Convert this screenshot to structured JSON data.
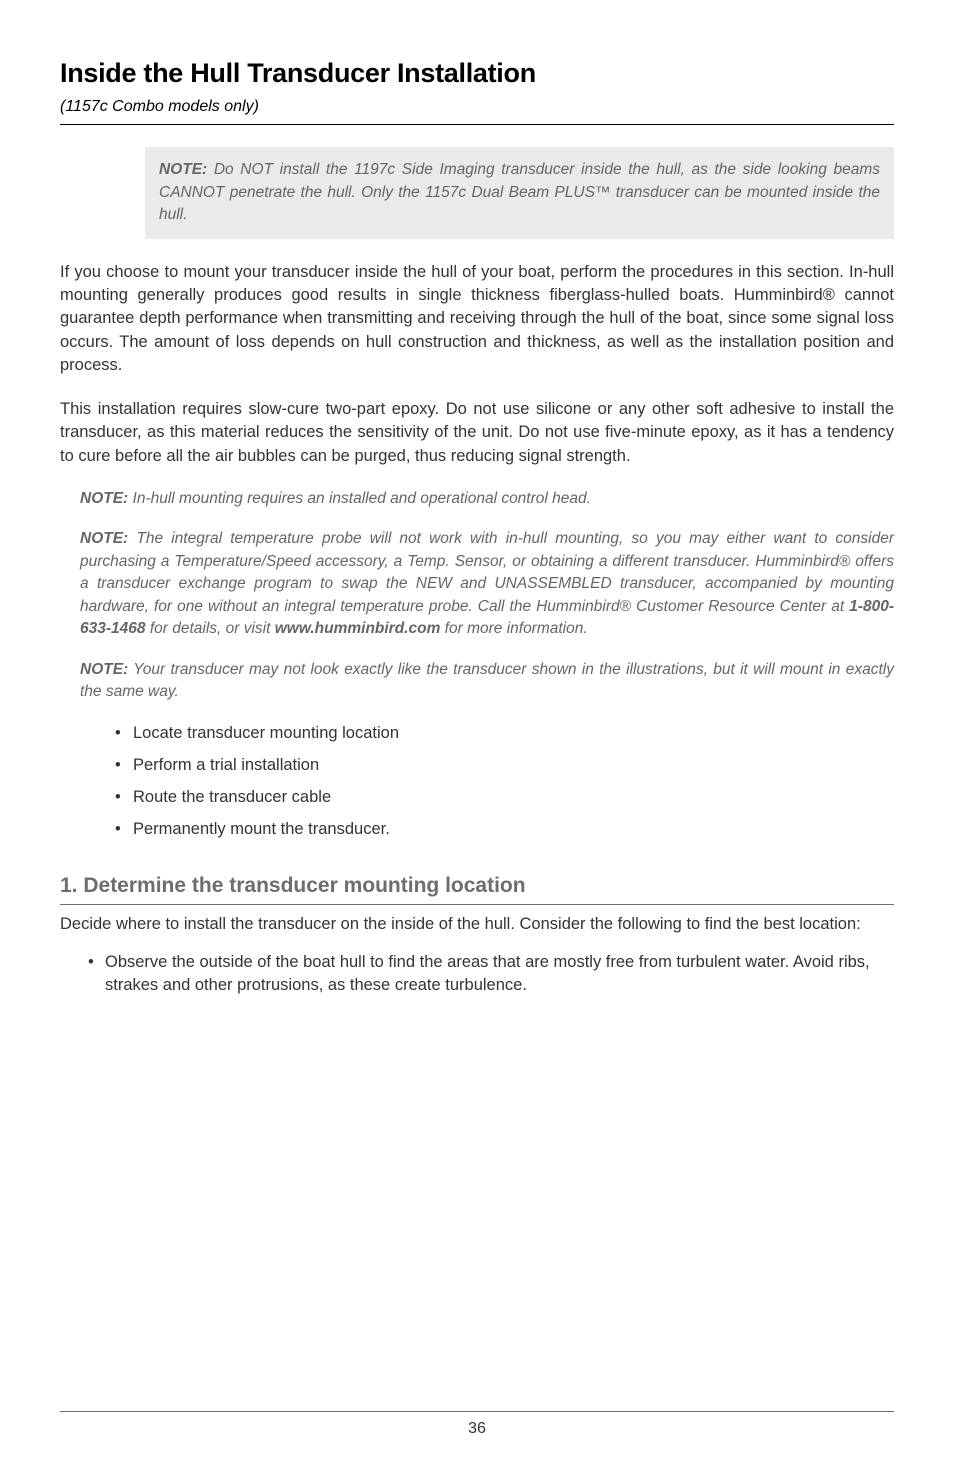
{
  "header": {
    "title": "Inside the Hull Transducer Installation",
    "subtitle": "(1157c Combo models only)"
  },
  "noteBox": {
    "label": "NOTE:",
    "text": " Do NOT install the 1197c Side Imaging transducer inside the hull, as the side looking beams CANNOT penetrate the hull. Only the 1157c Dual Beam PLUS™ transducer can be mounted inside the hull."
  },
  "para1": "If you choose to mount your transducer inside the hull of your boat, perform the procedures in this section. In-hull mounting generally produces good results in single thickness fiberglass-hulled boats. Humminbird® cannot guarantee depth performance when transmitting and receiving through the hull of the boat, since some signal loss occurs. The amount of loss depends on hull construction and thickness, as well as the installation position and process.",
  "para2": "This installation requires slow-cure two-part epoxy. Do not use silicone or any other soft adhesive to install the transducer, as this material reduces the sensitivity of the unit. Do not use five-minute epoxy, as it has a tendency to cure before all the air bubbles can be purged, thus reducing signal strength.",
  "note1": {
    "label": "NOTE:",
    "text": " In-hull mounting requires an installed and operational control head."
  },
  "note2": {
    "label": "NOTE:",
    "part1": " The integral temperature probe will not work with in-hull mounting, so you may either want to consider purchasing a Temperature/Speed accessory, a Temp. Sensor, or obtaining a different transducer. Humminbird® offers a transducer exchange program to swap the NEW and UNASSEMBLED transducer, accompanied by mounting hardware, for one without an integral temperature probe. Call the Humminbird® Customer Resource Center at ",
    "phone": "1-800-633-1468",
    "part2": " for details, or visit ",
    "url": "www.humminbird.com",
    "part3": " for more information."
  },
  "note3": {
    "label": "NOTE:",
    "text": " Your transducer may not look exactly like the transducer shown in the illustrations, but it will mount in exactly the same way."
  },
  "bullets": [
    "Locate transducer mounting location",
    "Perform a trial installation",
    "Route the transducer cable",
    "Permanently mount the transducer."
  ],
  "section1": {
    "heading": "1. Determine the transducer mounting location",
    "para": "Decide where to install the transducer on the inside of the hull. Consider the following to find the best location:",
    "bullet": "Observe the outside of the boat hull to find the areas that are mostly free from turbulent water. Avoid ribs, strakes and other protrusions, as these create turbulence."
  },
  "footer": {
    "pageNumber": "36"
  }
}
